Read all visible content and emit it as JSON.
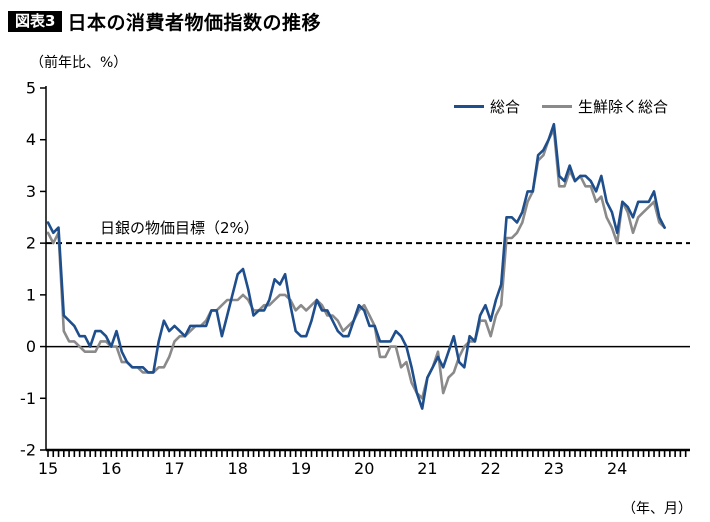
{
  "header": {
    "badge": "図表3",
    "title": "日本の消費者物価指数の推移"
  },
  "chart_data": {
    "type": "line",
    "title": "日本の消費者物価指数の推移",
    "ylabel": "（前年比、%）",
    "xlabel": "（年、月）",
    "ylim": [
      -2,
      5
    ],
    "yticks": [
      5,
      4,
      3,
      2,
      1,
      0,
      -1,
      -2
    ],
    "x_start": "2015-01",
    "x_end": "2024-10",
    "x_year_tick_labels": [
      "15",
      "16",
      "17",
      "18",
      "19",
      "20",
      "21",
      "22",
      "23",
      "24"
    ],
    "grid": false,
    "legend_position": "top-right",
    "reference_line": {
      "value": 2,
      "style": "dashed",
      "label": "日銀の物価目標（2%）"
    },
    "zero_line": {
      "value": 0,
      "style": "solid"
    },
    "series": [
      {
        "name": "総合",
        "color": "#1f4e8c",
        "values": [
          2.4,
          2.2,
          2.3,
          0.6,
          0.5,
          0.4,
          0.2,
          0.2,
          0.0,
          0.3,
          0.3,
          0.2,
          0.0,
          0.3,
          -0.1,
          -0.3,
          -0.4,
          -0.4,
          -0.4,
          -0.5,
          -0.5,
          0.1,
          0.5,
          0.3,
          0.4,
          0.3,
          0.2,
          0.4,
          0.4,
          0.4,
          0.4,
          0.7,
          0.7,
          0.2,
          0.6,
          1.0,
          1.4,
          1.5,
          1.1,
          0.6,
          0.7,
          0.7,
          0.9,
          1.3,
          1.2,
          1.4,
          0.8,
          0.3,
          0.2,
          0.2,
          0.5,
          0.9,
          0.7,
          0.7,
          0.5,
          0.3,
          0.2,
          0.2,
          0.5,
          0.8,
          0.7,
          0.4,
          0.4,
          0.1,
          0.1,
          0.1,
          0.3,
          0.2,
          0.0,
          -0.4,
          -0.9,
          -1.2,
          -0.6,
          -0.4,
          -0.2,
          -0.4,
          -0.1,
          0.2,
          -0.3,
          -0.4,
          0.2,
          0.1,
          0.6,
          0.8,
          0.5,
          0.9,
          1.2,
          2.5,
          2.5,
          2.4,
          2.6,
          3.0,
          3.0,
          3.7,
          3.8,
          4.0,
          4.3,
          3.3,
          3.2,
          3.5,
          3.2,
          3.3,
          3.3,
          3.2,
          3.0,
          3.3,
          2.8,
          2.6,
          2.2,
          2.8,
          2.7,
          2.5,
          2.8,
          2.8,
          2.8,
          3.0,
          2.5,
          2.3
        ]
      },
      {
        "name": "生鮮除く総合",
        "color": "#8a8a8a",
        "values": [
          2.2,
          2.0,
          2.2,
          0.3,
          0.1,
          0.1,
          0.0,
          -0.1,
          -0.1,
          -0.1,
          0.1,
          0.1,
          0.0,
          0.0,
          -0.3,
          -0.3,
          -0.4,
          -0.4,
          -0.5,
          -0.5,
          -0.5,
          -0.4,
          -0.4,
          -0.2,
          0.1,
          0.2,
          0.2,
          0.3,
          0.4,
          0.4,
          0.5,
          0.7,
          0.7,
          0.8,
          0.9,
          0.9,
          0.9,
          1.0,
          0.9,
          0.7,
          0.7,
          0.8,
          0.8,
          0.9,
          1.0,
          1.0,
          0.9,
          0.7,
          0.8,
          0.7,
          0.8,
          0.9,
          0.8,
          0.6,
          0.6,
          0.5,
          0.3,
          0.4,
          0.5,
          0.7,
          0.8,
          0.6,
          0.4,
          -0.2,
          -0.2,
          0.0,
          0.0,
          -0.4,
          -0.3,
          -0.7,
          -0.9,
          -1.0,
          -0.6,
          -0.4,
          -0.1,
          -0.9,
          -0.6,
          -0.5,
          -0.2,
          0.0,
          0.1,
          0.1,
          0.5,
          0.5,
          0.2,
          0.6,
          0.8,
          2.1,
          2.1,
          2.2,
          2.4,
          2.8,
          3.0,
          3.6,
          3.7,
          4.0,
          4.2,
          3.1,
          3.1,
          3.4,
          3.2,
          3.3,
          3.1,
          3.1,
          2.8,
          2.9,
          2.5,
          2.3,
          2.0,
          2.8,
          2.6,
          2.2,
          2.5,
          2.6,
          2.7,
          2.8,
          2.4,
          2.3
        ]
      }
    ]
  }
}
